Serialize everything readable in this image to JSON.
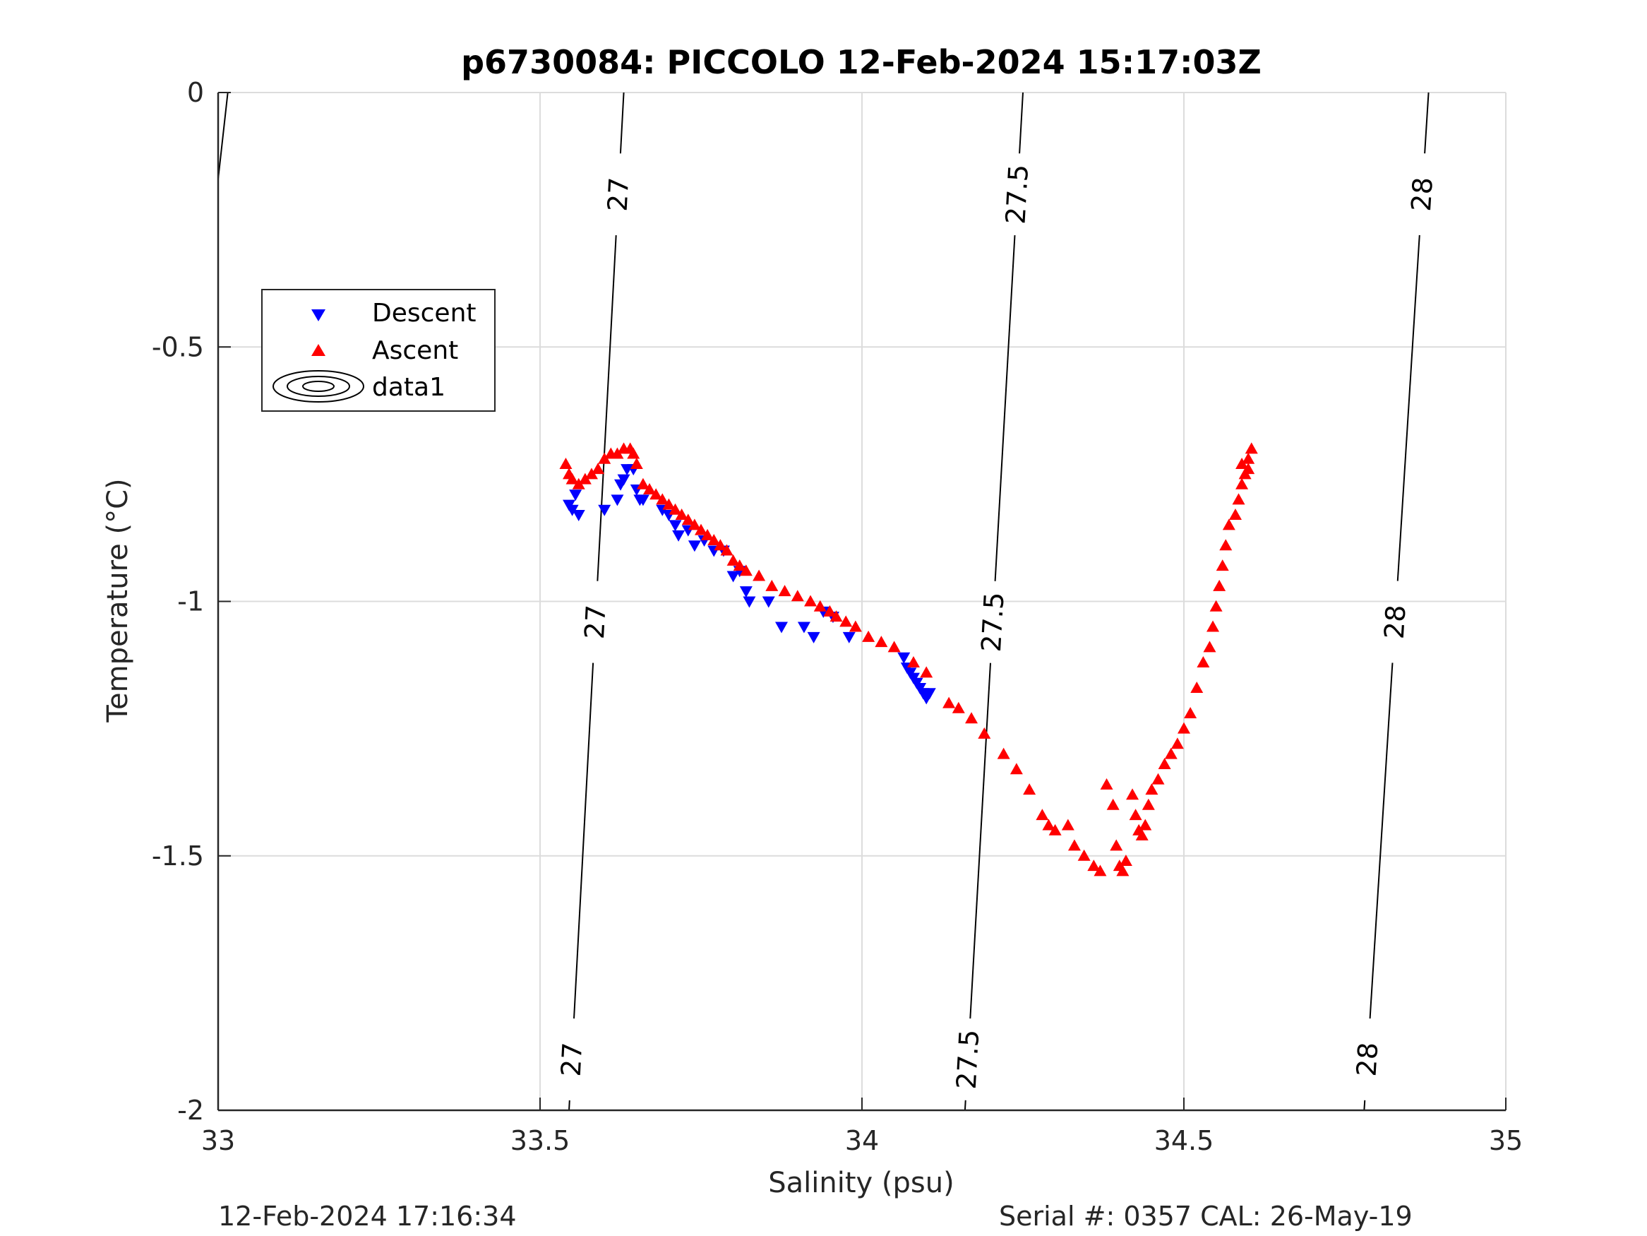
{
  "chart_data": {
    "type": "scatter",
    "title": "p6730084: PICCOLO 12-Feb-2024 15:17:03Z",
    "xlabel": "Salinity (psu)",
    "ylabel": "Temperature (°C)",
    "xlim": [
      33,
      35
    ],
    "ylim": [
      -2,
      0
    ],
    "xticks": [
      "33",
      "33.5",
      "34",
      "34.5",
      "35"
    ],
    "yticks": [
      "0",
      "-0.5",
      "-1",
      "-1.5",
      "-2"
    ],
    "grid": true,
    "legend_position": "upper-left",
    "legend": [
      "Descent",
      "Ascent",
      "data1"
    ],
    "series": [
      {
        "name": "Descent",
        "marker": "triangle-down",
        "color": "#0000ff",
        "points": [
          [
            33.545,
            -0.81
          ],
          [
            33.55,
            -0.82
          ],
          [
            33.56,
            -0.83
          ],
          [
            33.555,
            -0.79
          ],
          [
            33.6,
            -0.82
          ],
          [
            33.62,
            -0.8
          ],
          [
            33.625,
            -0.77
          ],
          [
            33.63,
            -0.76
          ],
          [
            33.635,
            -0.74
          ],
          [
            33.645,
            -0.74
          ],
          [
            33.65,
            -0.78
          ],
          [
            33.655,
            -0.8
          ],
          [
            33.66,
            -0.8
          ],
          [
            33.69,
            -0.82
          ],
          [
            33.7,
            -0.83
          ],
          [
            33.71,
            -0.85
          ],
          [
            33.715,
            -0.87
          ],
          [
            33.73,
            -0.86
          ],
          [
            33.74,
            -0.89
          ],
          [
            33.755,
            -0.88
          ],
          [
            33.77,
            -0.9
          ],
          [
            33.785,
            -0.9
          ],
          [
            33.8,
            -0.95
          ],
          [
            33.81,
            -0.94
          ],
          [
            33.82,
            -0.98
          ],
          [
            33.825,
            -1.0
          ],
          [
            33.855,
            -1.0
          ],
          [
            33.875,
            -1.05
          ],
          [
            33.91,
            -1.05
          ],
          [
            33.925,
            -1.07
          ],
          [
            33.94,
            -1.02
          ],
          [
            33.955,
            -1.03
          ],
          [
            33.98,
            -1.07
          ],
          [
            34.065,
            -1.11
          ],
          [
            34.07,
            -1.13
          ],
          [
            34.075,
            -1.14
          ],
          [
            34.08,
            -1.15
          ],
          [
            34.085,
            -1.16
          ],
          [
            34.09,
            -1.17
          ],
          [
            34.095,
            -1.18
          ],
          [
            34.1,
            -1.19
          ],
          [
            34.105,
            -1.18
          ]
        ]
      },
      {
        "name": "Ascent",
        "marker": "triangle-up",
        "color": "#ff0000",
        "points": [
          [
            33.54,
            -0.73
          ],
          [
            33.545,
            -0.75
          ],
          [
            33.55,
            -0.76
          ],
          [
            33.56,
            -0.77
          ],
          [
            33.57,
            -0.76
          ],
          [
            33.58,
            -0.75
          ],
          [
            33.59,
            -0.74
          ],
          [
            33.6,
            -0.72
          ],
          [
            33.61,
            -0.71
          ],
          [
            33.62,
            -0.71
          ],
          [
            33.63,
            -0.7
          ],
          [
            33.64,
            -0.7
          ],
          [
            33.645,
            -0.71
          ],
          [
            33.65,
            -0.73
          ],
          [
            33.66,
            -0.77
          ],
          [
            33.67,
            -0.78
          ],
          [
            33.68,
            -0.79
          ],
          [
            33.69,
            -0.8
          ],
          [
            33.7,
            -0.81
          ],
          [
            33.71,
            -0.82
          ],
          [
            33.72,
            -0.83
          ],
          [
            33.73,
            -0.84
          ],
          [
            33.74,
            -0.85
          ],
          [
            33.75,
            -0.86
          ],
          [
            33.76,
            -0.87
          ],
          [
            33.77,
            -0.88
          ],
          [
            33.78,
            -0.89
          ],
          [
            33.79,
            -0.9
          ],
          [
            33.8,
            -0.92
          ],
          [
            33.81,
            -0.93
          ],
          [
            33.82,
            -0.94
          ],
          [
            33.84,
            -0.95
          ],
          [
            33.86,
            -0.97
          ],
          [
            33.88,
            -0.98
          ],
          [
            33.9,
            -0.99
          ],
          [
            33.92,
            -1.0
          ],
          [
            33.935,
            -1.01
          ],
          [
            33.95,
            -1.02
          ],
          [
            33.96,
            -1.03
          ],
          [
            33.975,
            -1.04
          ],
          [
            33.99,
            -1.05
          ],
          [
            34.01,
            -1.07
          ],
          [
            34.03,
            -1.08
          ],
          [
            34.05,
            -1.09
          ],
          [
            34.08,
            -1.12
          ],
          [
            34.1,
            -1.14
          ],
          [
            34.135,
            -1.2
          ],
          [
            34.15,
            -1.21
          ],
          [
            34.17,
            -1.23
          ],
          [
            34.19,
            -1.26
          ],
          [
            34.22,
            -1.3
          ],
          [
            34.24,
            -1.33
          ],
          [
            34.26,
            -1.37
          ],
          [
            34.28,
            -1.42
          ],
          [
            34.29,
            -1.44
          ],
          [
            34.3,
            -1.45
          ],
          [
            34.32,
            -1.44
          ],
          [
            34.33,
            -1.48
          ],
          [
            34.345,
            -1.5
          ],
          [
            34.36,
            -1.52
          ],
          [
            34.37,
            -1.53
          ],
          [
            34.38,
            -1.36
          ],
          [
            34.39,
            -1.4
          ],
          [
            34.395,
            -1.48
          ],
          [
            34.4,
            -1.52
          ],
          [
            34.405,
            -1.53
          ],
          [
            34.41,
            -1.51
          ],
          [
            34.42,
            -1.38
          ],
          [
            34.425,
            -1.42
          ],
          [
            34.43,
            -1.45
          ],
          [
            34.435,
            -1.46
          ],
          [
            34.44,
            -1.44
          ],
          [
            34.445,
            -1.4
          ],
          [
            34.45,
            -1.37
          ],
          [
            34.46,
            -1.35
          ],
          [
            34.47,
            -1.32
          ],
          [
            34.48,
            -1.3
          ],
          [
            34.49,
            -1.28
          ],
          [
            34.5,
            -1.25
          ],
          [
            34.51,
            -1.22
          ],
          [
            34.52,
            -1.17
          ],
          [
            34.53,
            -1.12
          ],
          [
            34.54,
            -1.09
          ],
          [
            34.545,
            -1.05
          ],
          [
            34.55,
            -1.01
          ],
          [
            34.555,
            -0.97
          ],
          [
            34.56,
            -0.93
          ],
          [
            34.565,
            -0.89
          ],
          [
            34.57,
            -0.85
          ],
          [
            34.58,
            -0.83
          ],
          [
            34.585,
            -0.8
          ],
          [
            34.59,
            -0.77
          ],
          [
            34.595,
            -0.75
          ],
          [
            34.6,
            -0.72
          ],
          [
            34.605,
            -0.7
          ],
          [
            34.6,
            -0.74
          ],
          [
            34.59,
            -0.73
          ]
        ]
      }
    ],
    "contours": [
      {
        "level": "27",
        "ends": [
          [
            33.63,
            0
          ],
          [
            33.545,
            -2
          ]
        ],
        "labels": [
          [
            33.62,
            -0.2
          ],
          [
            33.58,
            -1.04
          ],
          [
            33.548,
            -1.9
          ]
        ]
      },
      {
        "level": "27.5",
        "ends": [
          [
            34.25,
            0
          ],
          [
            34.16,
            -2
          ]
        ],
        "labels": [
          [
            34.24,
            -0.2
          ],
          [
            34.195,
            -1.04
          ],
          [
            34.165,
            -1.9
          ]
        ]
      },
      {
        "level": "28",
        "ends": [
          [
            34.88,
            0
          ],
          [
            34.78,
            -2
          ]
        ],
        "labels": [
          [
            34.87,
            -0.2
          ],
          [
            34.825,
            -1.04
          ],
          [
            34.785,
            -1.9
          ]
        ]
      }
    ],
    "partial_contour": {
      "ends": [
        [
          33.015,
          0
        ],
        [
          33.0,
          -0.17
        ]
      ]
    }
  },
  "footer": {
    "left": "12-Feb-2024 17:16:34",
    "right": "Serial #: 0357  CAL: 26-May-19"
  }
}
